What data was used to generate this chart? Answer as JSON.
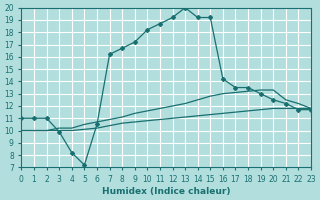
{
  "xlabel": "Humidex (Indice chaleur)",
  "bg_color": "#b2dede",
  "grid_color": "#ffffff",
  "line_color": "#1a7070",
  "xlim": [
    0,
    23
  ],
  "ylim": [
    7,
    20
  ],
  "xticks": [
    0,
    1,
    2,
    3,
    4,
    5,
    6,
    7,
    8,
    9,
    10,
    11,
    12,
    13,
    14,
    15,
    16,
    17,
    18,
    19,
    20,
    21,
    22,
    23
  ],
  "yticks": [
    7,
    8,
    9,
    10,
    11,
    12,
    13,
    14,
    15,
    16,
    17,
    18,
    19,
    20
  ],
  "line1_x": [
    0,
    1,
    2,
    3,
    4,
    5,
    6,
    7,
    8,
    9,
    10,
    11,
    12,
    13,
    14,
    15,
    16,
    17,
    18,
    19,
    20,
    21,
    22,
    23
  ],
  "line1_y": [
    11,
    11,
    11,
    9.9,
    8.2,
    7.2,
    10.5,
    16.2,
    16.7,
    17.2,
    18.2,
    18.7,
    19.2,
    20.0,
    19.2,
    19.2,
    14.2,
    13.5,
    13.5,
    13.0,
    12.5,
    12.2,
    11.7,
    11.7
  ],
  "line2_x": [
    0,
    1,
    2,
    3,
    4,
    5,
    6,
    7,
    8,
    9,
    10,
    11,
    12,
    13,
    14,
    15,
    16,
    17,
    18,
    19,
    20,
    21,
    22,
    23
  ],
  "line2_y": [
    10.0,
    10.0,
    10.0,
    10.2,
    10.2,
    10.5,
    10.7,
    10.9,
    11.1,
    11.4,
    11.6,
    11.8,
    12.0,
    12.2,
    12.5,
    12.8,
    13.0,
    13.1,
    13.2,
    13.3,
    13.3,
    12.5,
    12.2,
    11.8
  ],
  "line3_x": [
    0,
    1,
    2,
    3,
    4,
    5,
    6,
    7,
    8,
    9,
    10,
    11,
    12,
    13,
    14,
    15,
    16,
    17,
    18,
    19,
    20,
    21,
    22,
    23
  ],
  "line3_y": [
    10.0,
    10.0,
    10.0,
    10.0,
    10.0,
    10.1,
    10.2,
    10.4,
    10.6,
    10.7,
    10.8,
    10.9,
    11.0,
    11.1,
    11.2,
    11.3,
    11.4,
    11.5,
    11.6,
    11.7,
    11.8,
    11.8,
    11.8,
    11.8
  ]
}
